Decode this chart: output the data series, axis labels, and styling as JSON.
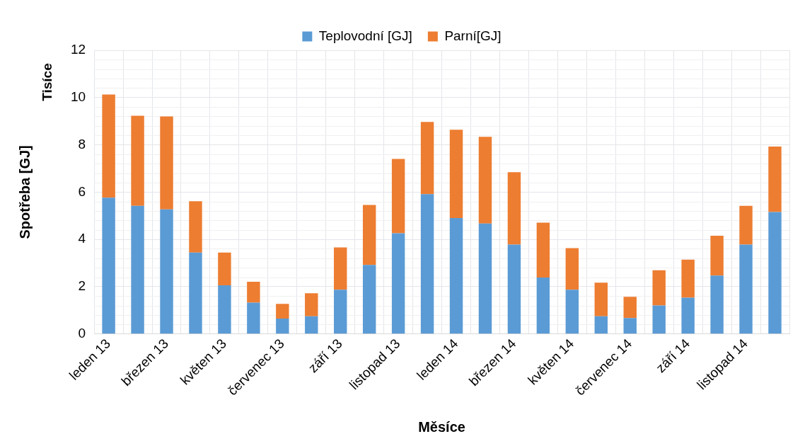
{
  "chart_data": {
    "type": "bar",
    "stacked": true,
    "xlabel": "Měsíce",
    "ylabel": "Spotřeba [GJ]",
    "annotations": [
      "Tisíce"
    ],
    "categories": [
      "leden 13",
      null,
      "březen 13",
      null,
      "květen 13",
      null,
      "červenec 13",
      null,
      "září 13",
      null,
      "listopad 13",
      null,
      "leden 14",
      null,
      "březen 14",
      null,
      "květen 14",
      null,
      "červenec 14",
      null,
      "září 14",
      null,
      "listopad 14",
      null
    ],
    "series": [
      {
        "name": "Teplovodní [GJ]",
        "color": "#5b9bd5",
        "values": [
          5.76,
          5.42,
          5.27,
          3.44,
          2.06,
          1.32,
          0.65,
          0.75,
          1.87,
          2.92,
          4.26,
          5.91,
          4.9,
          4.67,
          3.78,
          2.39,
          1.87,
          0.75,
          0.67,
          1.2,
          1.53,
          2.47,
          3.78,
          5.16
        ]
      },
      {
        "name": "Parní[GJ]",
        "color": "#ed7d31",
        "values": [
          4.37,
          3.81,
          3.93,
          2.17,
          1.38,
          0.89,
          0.62,
          0.97,
          1.79,
          2.54,
          3.14,
          3.06,
          3.74,
          3.67,
          3.06,
          2.32,
          1.76,
          1.42,
          0.9,
          1.49,
          1.61,
          1.68,
          1.64,
          2.77
        ]
      }
    ],
    "ylim": [
      0,
      12
    ],
    "yticks": [
      0,
      2,
      4,
      6,
      8,
      10,
      12
    ],
    "grid": true,
    "legend": "top"
  }
}
